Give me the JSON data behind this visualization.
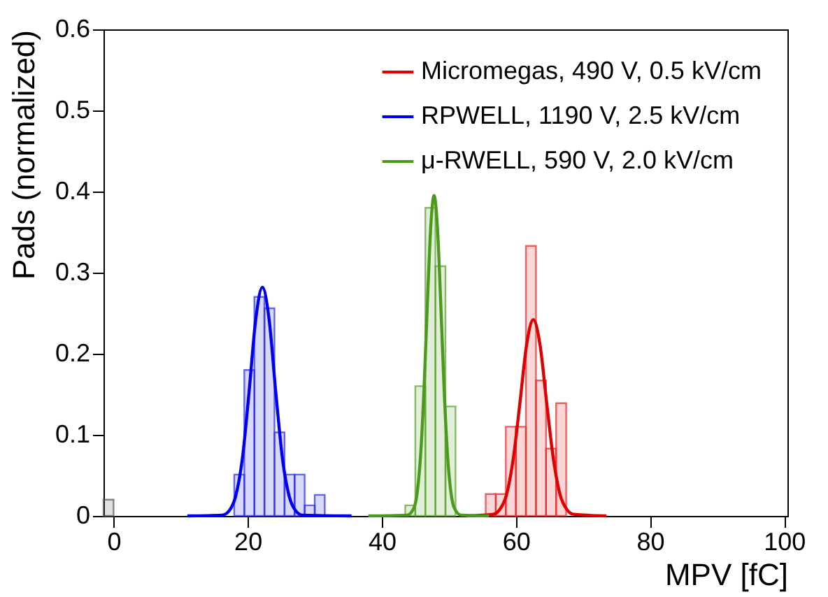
{
  "chart_data": {
    "type": "histogram",
    "xlabel": "MPV [fC]",
    "ylabel": "Pads (normalized)",
    "xlim": [
      -1.5,
      100.5
    ],
    "ylim": [
      0,
      0.6
    ],
    "xticks": [
      0,
      20,
      40,
      60,
      80,
      100
    ],
    "yticks": [
      0,
      0.1,
      0.2,
      0.3,
      0.4,
      0.5,
      0.6
    ],
    "grid": false,
    "legend": "top right",
    "series": [
      {
        "color": "#555555",
        "bins": [
          -1.5,
          0
        ],
        "values": [
          0.02
        ]
      },
      {
        "color": "#ee2222",
        "bins": [
          55.5,
          57,
          58.5,
          60,
          61.5,
          63,
          64.5,
          66,
          67.5
        ],
        "values": [
          0.027,
          0.027,
          0.11,
          0.11,
          0.333,
          0.167,
          0.083,
          0.139
        ]
      },
      {
        "color": "#2a2aee",
        "bins": [
          18,
          19.5,
          21,
          22.5,
          24,
          25.5,
          27,
          28.5,
          30,
          31.5
        ],
        "values": [
          0.051,
          0.18,
          0.27,
          0.256,
          0.103,
          0.051,
          0.051,
          0.013,
          0.026
        ]
      },
      {
        "color": "#5aa02c",
        "bins": [
          43.5,
          45,
          46.5,
          48,
          49.5,
          51
        ],
        "values": [
          0.013,
          0.16,
          0.38,
          0.308,
          0.135
        ]
      },
      {
        "type": "line",
        "name": "Micromegas, 490 V, 0.5 kV/cm",
        "color": "#e00000",
        "x": [
          52.5,
          56.6,
          57.6,
          58.6,
          59.6,
          60.6,
          61.6,
          62.6,
          63.6,
          64.6,
          65.6,
          66.6,
          67.6,
          68.6,
          73.5
        ],
        "values": [
          0,
          0.002,
          0.008,
          0.026,
          0.07,
          0.139,
          0.211,
          0.242,
          0.211,
          0.139,
          0.07,
          0.026,
          0.008,
          0.002,
          0
        ]
      },
      {
        "type": "line",
        "name": "RPWELL, 1190 V, 2.5 kV/cm",
        "color": "#0000f0",
        "x": [
          11,
          16.2,
          17.2,
          18.2,
          19.2,
          20.2,
          21.2,
          22.2,
          23.2,
          24.2,
          25.2,
          26.2,
          27.2,
          28.2,
          35.5
        ],
        "values": [
          0,
          0.001,
          0.006,
          0.024,
          0.07,
          0.152,
          0.242,
          0.282,
          0.242,
          0.152,
          0.07,
          0.024,
          0.006,
          0.001,
          0
        ]
      },
      {
        "type": "line",
        "name": "μ-RWELL, 590 V, 2.0 kV/cm",
        "color": "#4c9a1c",
        "x": [
          38,
          43.8,
          44.8,
          45.3,
          45.8,
          46.3,
          46.8,
          47.3,
          47.8,
          48.3,
          48.8,
          49.3,
          49.8,
          50.3,
          50.8,
          51.8,
          56
        ],
        "values": [
          0,
          0.001,
          0.01,
          0.03,
          0.076,
          0.156,
          0.261,
          0.356,
          0.395,
          0.356,
          0.261,
          0.156,
          0.076,
          0.03,
          0.01,
          0.001,
          0
        ]
      }
    ]
  }
}
